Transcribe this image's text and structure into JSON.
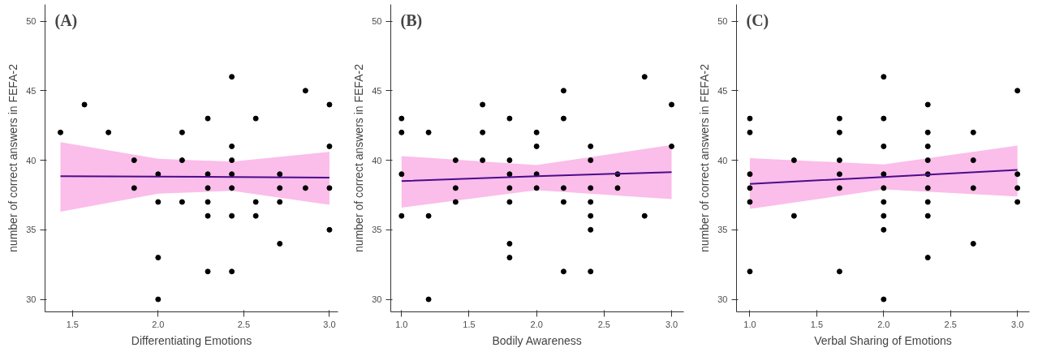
{
  "chart_data": [
    {
      "type": "scatter",
      "title": "(A)",
      "xlabel": "Differentiating Emotions",
      "ylabel": "number of correct answers in FEFA-2",
      "xlim": [
        1.34,
        3.05
      ],
      "ylim": [
        29.1,
        51.2
      ],
      "xticks": [
        {
          "value": 1.5,
          "label": "1.5"
        },
        {
          "value": 2,
          "label": "2.0"
        },
        {
          "value": 2.5,
          "label": "2.5"
        },
        {
          "value": 3,
          "label": "3.0"
        }
      ],
      "yticks": [
        30,
        35,
        40,
        45,
        50
      ],
      "grid": false,
      "series": [
        {
          "marker": "circle",
          "color": "#000000",
          "x": [
            1.43,
            1.57,
            1.71,
            1.86,
            1.86,
            2.0,
            2.0,
            2.0,
            2.0,
            2.14,
            2.14,
            2.14,
            2.29,
            2.29,
            2.29,
            2.29,
            2.29,
            2.29,
            2.43,
            2.43,
            2.43,
            2.43,
            2.43,
            2.43,
            2.43,
            2.57,
            2.57,
            2.57,
            2.71,
            2.71,
            2.71,
            2.71,
            2.86,
            2.86,
            3.0,
            3.0,
            3.0,
            3.0
          ],
          "values": [
            42,
            44,
            42,
            40,
            38,
            39,
            37,
            33,
            30,
            42,
            40,
            37,
            43,
            39,
            38,
            37,
            36,
            32,
            46,
            41,
            40,
            39,
            38,
            36,
            32,
            43,
            37,
            36,
            39,
            38,
            37,
            34,
            45,
            38,
            44,
            41,
            38,
            35
          ]
        },
        {
          "type": "line",
          "color": "#4b0c8c",
          "x": [
            1.43,
            2.0,
            2.43,
            3.0
          ],
          "values": [
            38.85,
            38.82,
            38.8,
            38.75
          ],
          "lower": [
            36.3,
            37.6,
            37.8,
            36.8
          ],
          "upper": [
            41.3,
            40.1,
            39.9,
            40.6
          ]
        }
      ]
    },
    {
      "type": "scatter",
      "title": "(B)",
      "xlabel": "Bodily Awareness",
      "ylabel": "number of correct answers in FEFA-2",
      "xlim": [
        0.92,
        3.09
      ],
      "ylim": [
        29.1,
        51.2
      ],
      "xticks": [
        {
          "value": 1,
          "label": "1.0"
        },
        {
          "value": 1.5,
          "label": "1.5"
        },
        {
          "value": 2,
          "label": "2.0"
        },
        {
          "value": 2.5,
          "label": "2.5"
        },
        {
          "value": 3,
          "label": "3.0"
        }
      ],
      "yticks": [
        30,
        35,
        40,
        45,
        50
      ],
      "grid": false,
      "series": [
        {
          "marker": "circle",
          "color": "#000000",
          "x": [
            1.0,
            1.0,
            1.0,
            1.0,
            1.2,
            1.2,
            1.2,
            1.4,
            1.4,
            1.4,
            1.6,
            1.6,
            1.6,
            1.8,
            1.8,
            1.8,
            1.8,
            1.8,
            1.8,
            1.8,
            2.0,
            2.0,
            2.0,
            2.0,
            2.2,
            2.2,
            2.2,
            2.2,
            2.2,
            2.4,
            2.4,
            2.4,
            2.4,
            2.4,
            2.4,
            2.4,
            2.6,
            2.6,
            2.8,
            2.8,
            3.0,
            3.0
          ],
          "values": [
            43,
            42,
            39,
            36,
            42,
            36,
            30,
            40,
            38,
            37,
            44,
            42,
            40,
            43,
            40,
            39,
            38,
            37,
            34,
            33,
            42,
            41,
            39,
            38,
            45,
            43,
            38,
            37,
            32,
            41,
            40,
            38,
            37,
            36,
            35,
            32,
            39,
            38,
            46,
            36,
            44,
            41
          ]
        },
        {
          "type": "line",
          "color": "#4b0c8c",
          "x": [
            1.0,
            2.0,
            3.0
          ],
          "values": [
            38.5,
            38.85,
            39.15
          ],
          "lower": [
            36.6,
            37.85,
            37.2
          ],
          "upper": [
            40.3,
            39.65,
            41.1
          ]
        }
      ]
    },
    {
      "type": "scatter",
      "title": "(C)",
      "xlabel": "Verbal Sharing of Emotions",
      "ylabel": "number of correct answers in FEFA-2",
      "xlim": [
        0.9,
        3.09
      ],
      "ylim": [
        29.1,
        51.2
      ],
      "xticks": [
        {
          "value": 1,
          "label": "1.0"
        },
        {
          "value": 1.5,
          "label": "1.5"
        },
        {
          "value": 2,
          "label": "2.0"
        },
        {
          "value": 2.5,
          "label": "2.5"
        },
        {
          "value": 3,
          "label": "3.0"
        }
      ],
      "yticks": [
        30,
        35,
        40,
        45,
        50
      ],
      "grid": false,
      "series": [
        {
          "marker": "circle",
          "color": "#000000",
          "x": [
            1.0,
            1.0,
            1.0,
            1.0,
            1.0,
            1.0,
            1.33,
            1.33,
            1.67,
            1.67,
            1.67,
            1.67,
            1.67,
            1.67,
            2.0,
            2.0,
            2.0,
            2.0,
            2.0,
            2.0,
            2.0,
            2.0,
            2.0,
            2.33,
            2.33,
            2.33,
            2.33,
            2.33,
            2.33,
            2.33,
            2.33,
            2.33,
            2.67,
            2.67,
            2.67,
            2.67,
            3.0,
            3.0,
            3.0,
            3.0
          ],
          "values": [
            43,
            42,
            39,
            38,
            37,
            32,
            40,
            36,
            43,
            42,
            40,
            39,
            38,
            32,
            46,
            43,
            41,
            39,
            38,
            37,
            36,
            35,
            30,
            44,
            42,
            41,
            40,
            39,
            38,
            37,
            36,
            33,
            42,
            40,
            38,
            34,
            45,
            39,
            38,
            37
          ]
        },
        {
          "type": "line",
          "color": "#4b0c8c",
          "x": [
            1.0,
            2.0,
            3.0
          ],
          "values": [
            38.3,
            38.8,
            39.3
          ],
          "lower": [
            36.5,
            37.9,
            37.4
          ],
          "upper": [
            40.15,
            39.7,
            41.05
          ]
        }
      ]
    }
  ]
}
